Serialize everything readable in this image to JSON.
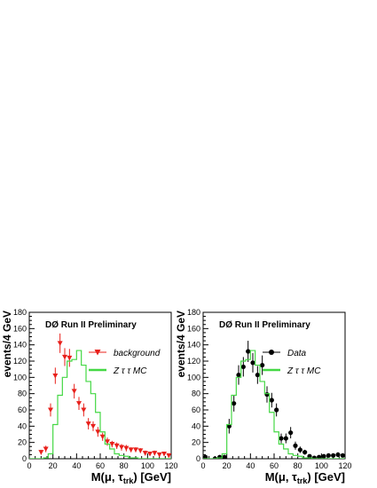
{
  "chart_data": [
    {
      "type": "scatter",
      "title": "DØ Run II Preliminary",
      "xlabel": "M(μ, τ_trk) [GeV]",
      "ylabel": "events/4 GeV",
      "xlim": [
        0,
        120
      ],
      "ylim": [
        0,
        180
      ],
      "xticks": [
        0,
        20,
        40,
        60,
        80,
        100,
        120
      ],
      "yticks": [
        0,
        20,
        40,
        60,
        80,
        100,
        120,
        140,
        160,
        180
      ],
      "grid": false,
      "legend_position": "top-right",
      "series": [
        {
          "name": "background",
          "kind": "points",
          "marker": "triangle-down",
          "color": "#e8201b",
          "x": [
            10,
            14,
            18,
            22,
            26,
            30,
            34,
            38,
            42,
            46,
            50,
            54,
            58,
            62,
            66,
            70,
            74,
            78,
            82,
            86,
            90,
            94,
            98,
            102,
            106,
            110,
            114,
            118
          ],
          "y": [
            8,
            12,
            60,
            102,
            142,
            125,
            124,
            83,
            68,
            60,
            43,
            40,
            33,
            27,
            21,
            18,
            16,
            14,
            13,
            11,
            11,
            10,
            7,
            6,
            7,
            5,
            6,
            4
          ],
          "err": [
            3,
            4,
            8,
            10,
            12,
            11,
            11,
            9,
            8,
            8,
            7,
            6,
            6,
            5,
            5,
            4,
            4,
            4,
            4,
            3,
            3,
            3,
            3,
            2,
            3,
            2,
            2,
            2
          ]
        },
        {
          "name": "Z τ τ MC",
          "kind": "step",
          "color": "#45d845",
          "edges": [
            0,
            4,
            8,
            12,
            16,
            20,
            24,
            28,
            32,
            36,
            40,
            44,
            48,
            52,
            56,
            60,
            64,
            68,
            72,
            76,
            80,
            84,
            88,
            92,
            96,
            100,
            104,
            108,
            112,
            116,
            120
          ],
          "values": [
            0,
            0,
            0,
            1,
            6,
            42,
            78,
            100,
            120,
            122,
            133,
            115,
            95,
            80,
            57,
            33,
            18,
            12,
            6,
            4,
            3,
            1,
            1,
            0,
            0,
            0,
            0,
            0,
            0,
            0
          ]
        }
      ]
    },
    {
      "type": "scatter",
      "title": "DØ Run II Preliminary",
      "xlabel": "M(μ, τ_trk) [GeV]",
      "ylabel": "events/4 GeV",
      "xlim": [
        0,
        120
      ],
      "ylim": [
        0,
        180
      ],
      "xticks": [
        0,
        20,
        40,
        60,
        80,
        100,
        120
      ],
      "yticks": [
        0,
        20,
        40,
        60,
        80,
        100,
        120,
        140,
        160,
        180
      ],
      "grid": false,
      "legend_position": "top-right",
      "series": [
        {
          "name": "Data",
          "kind": "points",
          "marker": "circle",
          "color": "#000000",
          "x": [
            2,
            10,
            14,
            18,
            22,
            26,
            30,
            34,
            38,
            42,
            46,
            50,
            54,
            58,
            62,
            66,
            70,
            74,
            78,
            82,
            86,
            90,
            94,
            98,
            102,
            106,
            110,
            114,
            118
          ],
          "y": [
            2,
            0,
            2,
            2,
            40,
            68,
            103,
            113,
            132,
            118,
            103,
            115,
            79,
            72,
            60,
            25,
            25,
            32,
            16,
            11,
            8,
            3,
            1,
            2,
            3,
            4,
            4,
            5,
            4
          ],
          "err": [
            2,
            1,
            2,
            2,
            9,
            10,
            12,
            12,
            13,
            12,
            11,
            12,
            10,
            9,
            8,
            6,
            6,
            7,
            5,
            4,
            3,
            2,
            1,
            2,
            2,
            2,
            2,
            3,
            2
          ]
        },
        {
          "name": "Z τ τ MC",
          "kind": "step",
          "color": "#45d845",
          "edges": [
            0,
            4,
            8,
            12,
            16,
            20,
            24,
            28,
            32,
            36,
            40,
            44,
            48,
            52,
            56,
            60,
            64,
            68,
            72,
            76,
            80,
            84,
            88,
            92,
            96,
            100,
            104,
            108,
            112,
            116,
            120
          ],
          "values": [
            0,
            0,
            0,
            1,
            6,
            42,
            78,
            100,
            120,
            122,
            133,
            115,
            95,
            80,
            57,
            33,
            18,
            12,
            6,
            4,
            3,
            1,
            1,
            0,
            0,
            0,
            0,
            0,
            0,
            0
          ]
        }
      ]
    }
  ]
}
